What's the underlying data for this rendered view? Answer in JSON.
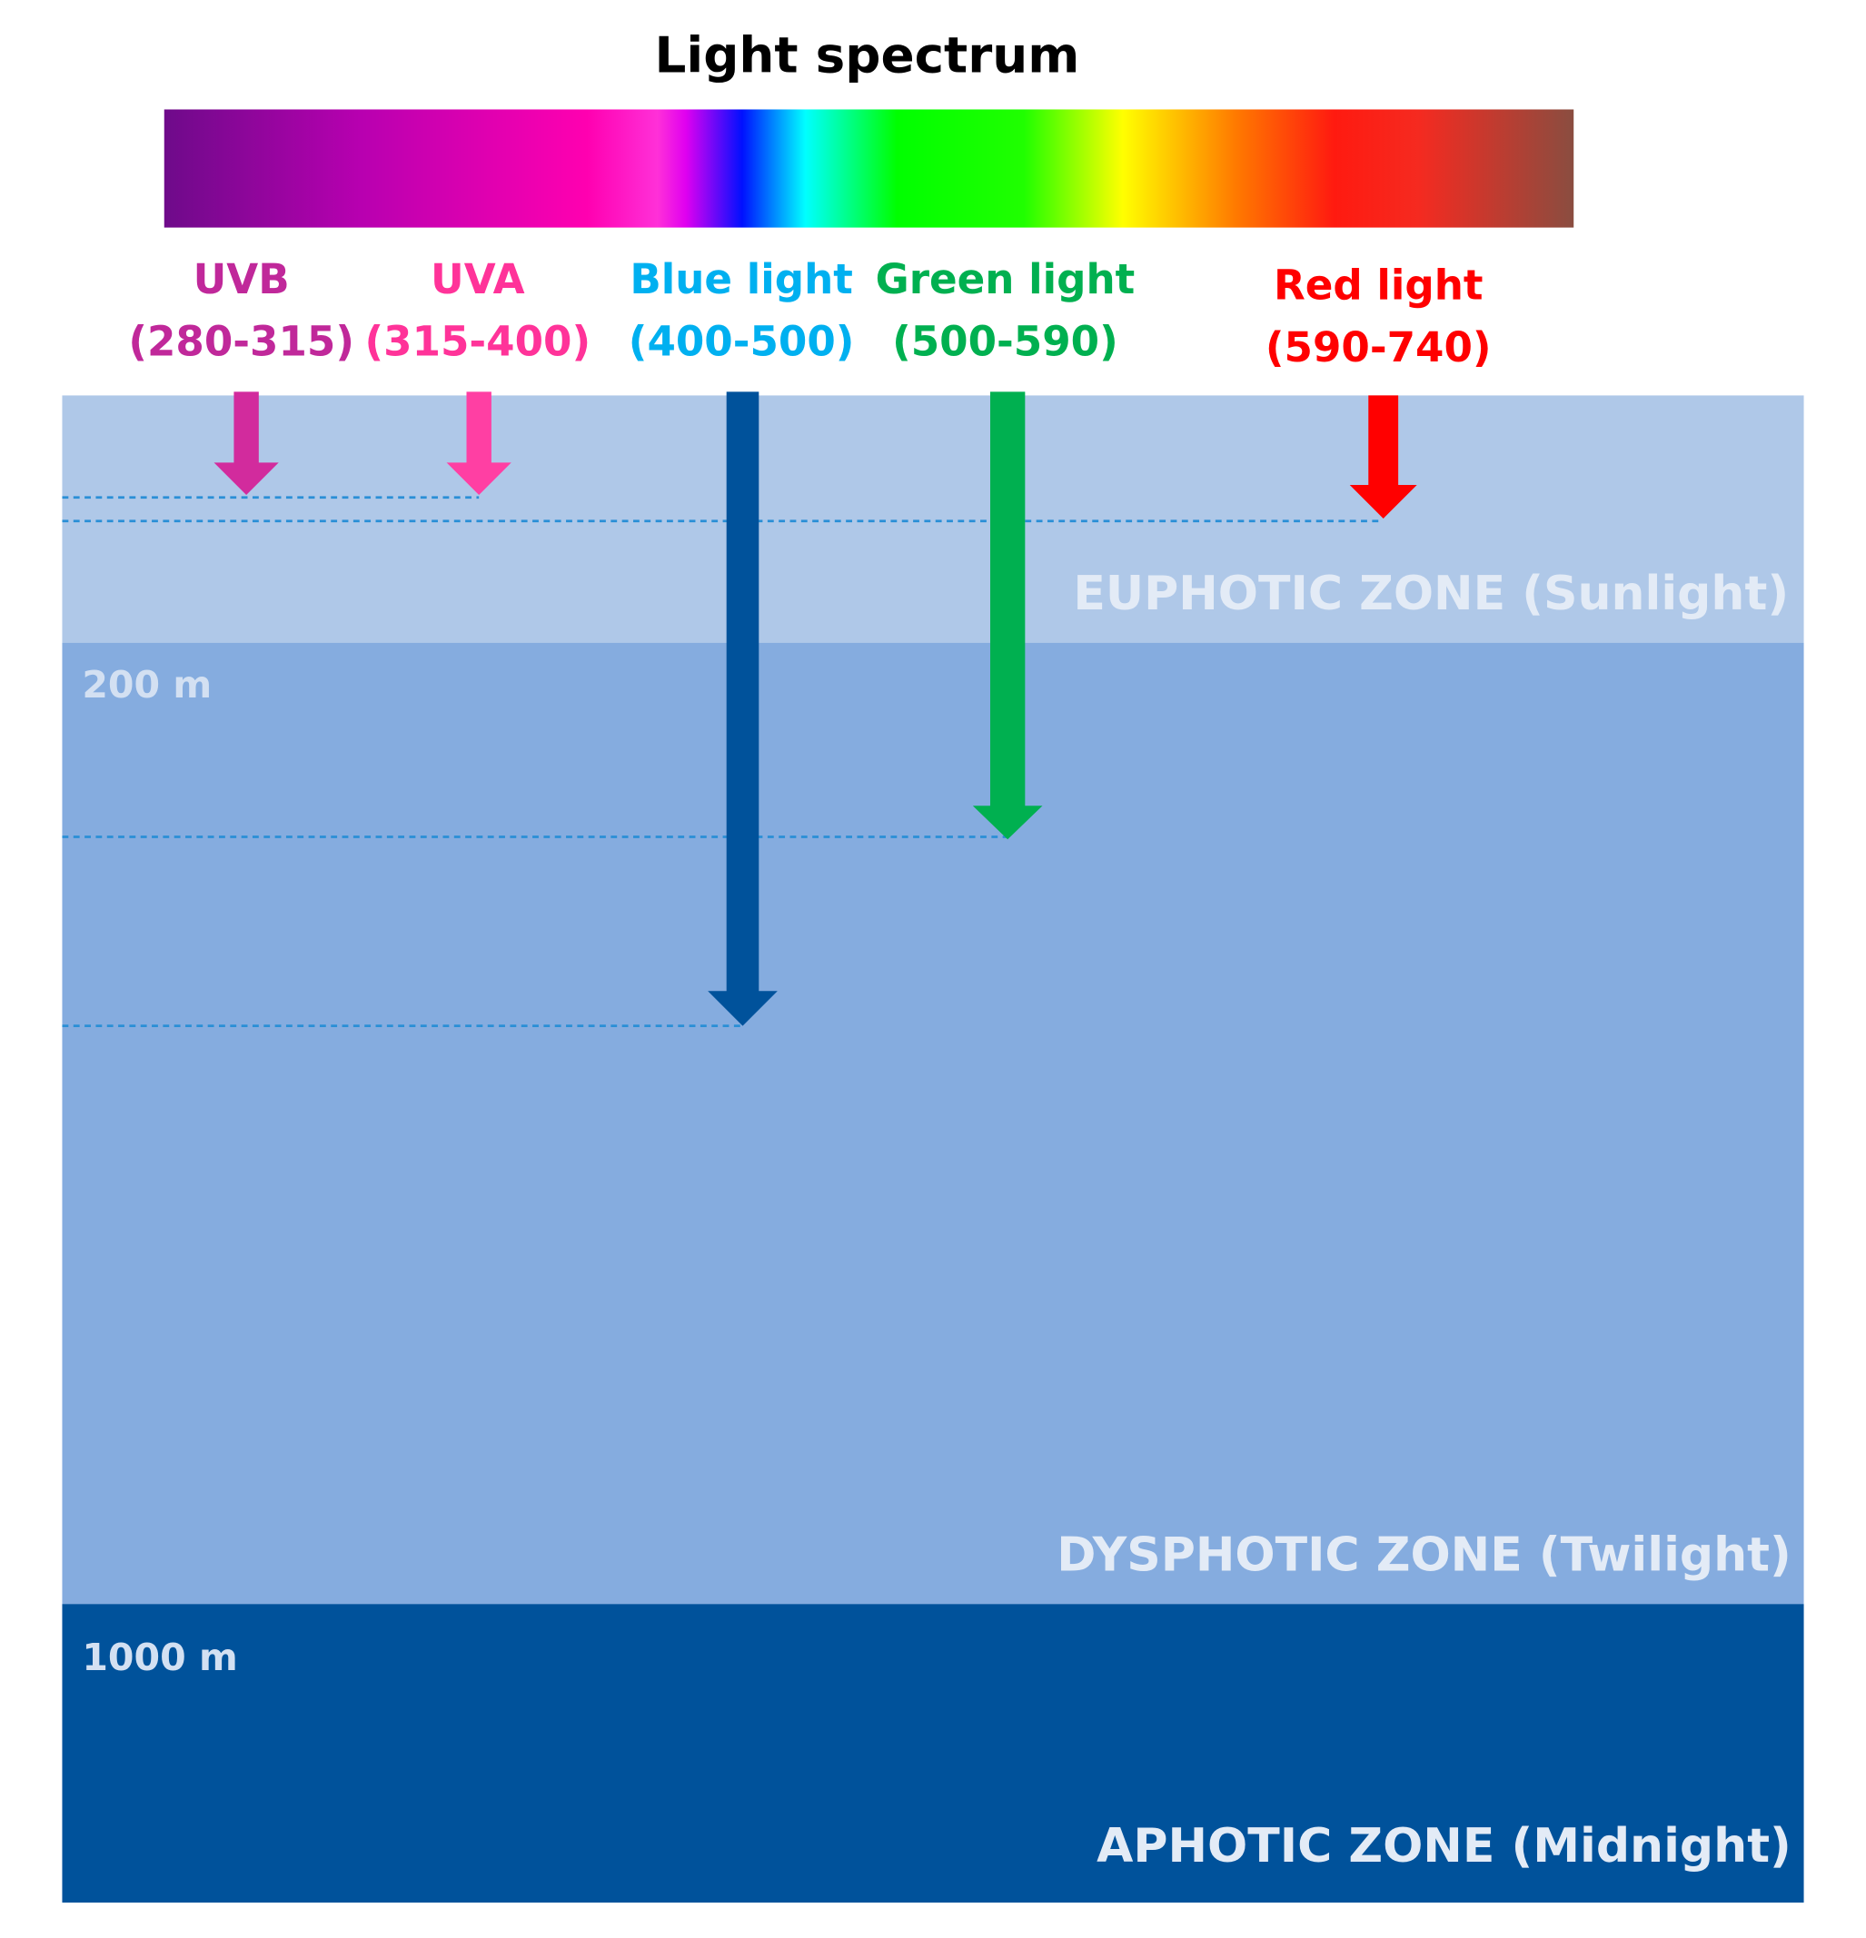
{
  "title": "Light spectrum",
  "bands": [
    {
      "name": "UVB",
      "range": "(280-315)"
    },
    {
      "name": "UVA",
      "range": "(315-400)"
    },
    {
      "name": "Blue light",
      "range": "(400-500)"
    },
    {
      "name": "Green light",
      "range": "(500-590)"
    },
    {
      "name": "Red light",
      "range": "(590-740)"
    }
  ],
  "zones": [
    {
      "label": "EUPHOTIC ZONE (Sunlight)"
    },
    {
      "label": "DYSPHOTIC ZONE (Twilight)"
    },
    {
      "label": "APHOTIC ZONE (Midnight)"
    }
  ],
  "depths": [
    "200 m",
    "1000 m"
  ]
}
